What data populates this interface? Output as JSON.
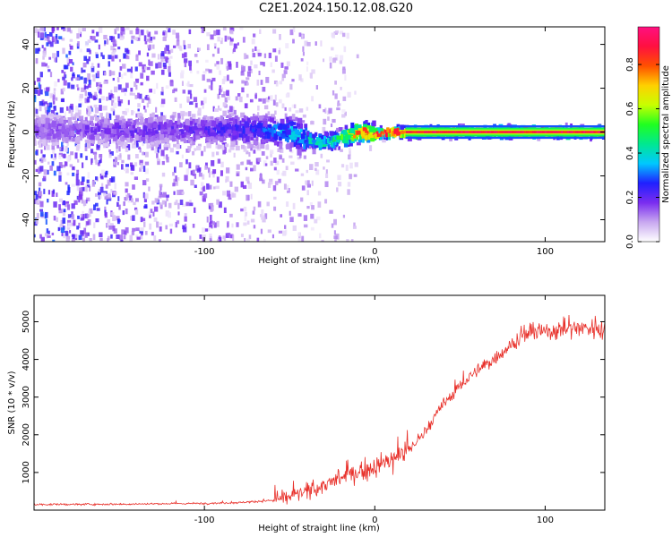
{
  "figure": {
    "title": "C2E1.2024.150.12.08.G20"
  },
  "chart_data": [
    {
      "type": "heatmap",
      "xlabel": "Height of straight line (km)",
      "ylabel": "Frequency (Hz)",
      "xlim": [
        -200,
        135
      ],
      "ylim": [
        -50,
        48
      ],
      "x_ticks": [
        -100,
        0,
        100
      ],
      "y_ticks": [
        -40,
        -20,
        0,
        20,
        40
      ],
      "grid": false,
      "colorbar": {
        "label": "Normalized spectral amplitude",
        "range": [
          0.0,
          0.97
        ],
        "ticks": [
          0.0,
          0.2,
          0.4,
          0.6,
          0.8
        ],
        "colormap": [
          "#ffffff",
          "#c8a8f0",
          "#7a2cf0",
          "#2020ff",
          "#00c8ff",
          "#00e890",
          "#20ff20",
          "#c8ff00",
          "#ffd000",
          "#ff5000",
          "#ff1040",
          "#ff1080"
        ]
      },
      "description_points": {
        "ridge_x": [
          -200,
          -150,
          -100,
          -70,
          -50,
          -40,
          -30,
          -20,
          -10,
          0,
          10,
          20,
          50,
          80,
          100,
          135
        ],
        "ridge_y": [
          1,
          1,
          1,
          1,
          0,
          -3,
          -5,
          -3,
          0,
          -1,
          0,
          0,
          0,
          0,
          0,
          0
        ],
        "ridge_amplitude": [
          0.15,
          0.18,
          0.2,
          0.25,
          0.35,
          0.4,
          0.4,
          0.5,
          0.8,
          0.85,
          0.85,
          0.9,
          0.8,
          0.85,
          0.95,
          0.9
        ]
      }
    },
    {
      "type": "line",
      "xlabel": "Height of straight line (km)",
      "ylabel": "SNR (10 * v/v)",
      "xlim": [
        -200,
        135
      ],
      "ylim": [
        0,
        5700
      ],
      "x_ticks": [
        -100,
        0,
        100
      ],
      "y_ticks": [
        1000,
        2000,
        3000,
        4000,
        5000
      ],
      "grid": false,
      "series": [
        {
          "color": "#e8302a",
          "x": [
            -200,
            -150,
            -100,
            -80,
            -60,
            -50,
            -40,
            -30,
            -20,
            -10,
            0,
            10,
            20,
            30,
            40,
            50,
            60,
            70,
            80,
            90,
            100,
            110,
            120,
            135
          ],
          "y": [
            150,
            160,
            180,
            200,
            260,
            350,
            500,
            650,
            850,
            1000,
            1150,
            1350,
            1600,
            2100,
            2800,
            3300,
            3700,
            4000,
            4400,
            4700,
            4750,
            4800,
            4850,
            4800
          ]
        }
      ]
    }
  ]
}
